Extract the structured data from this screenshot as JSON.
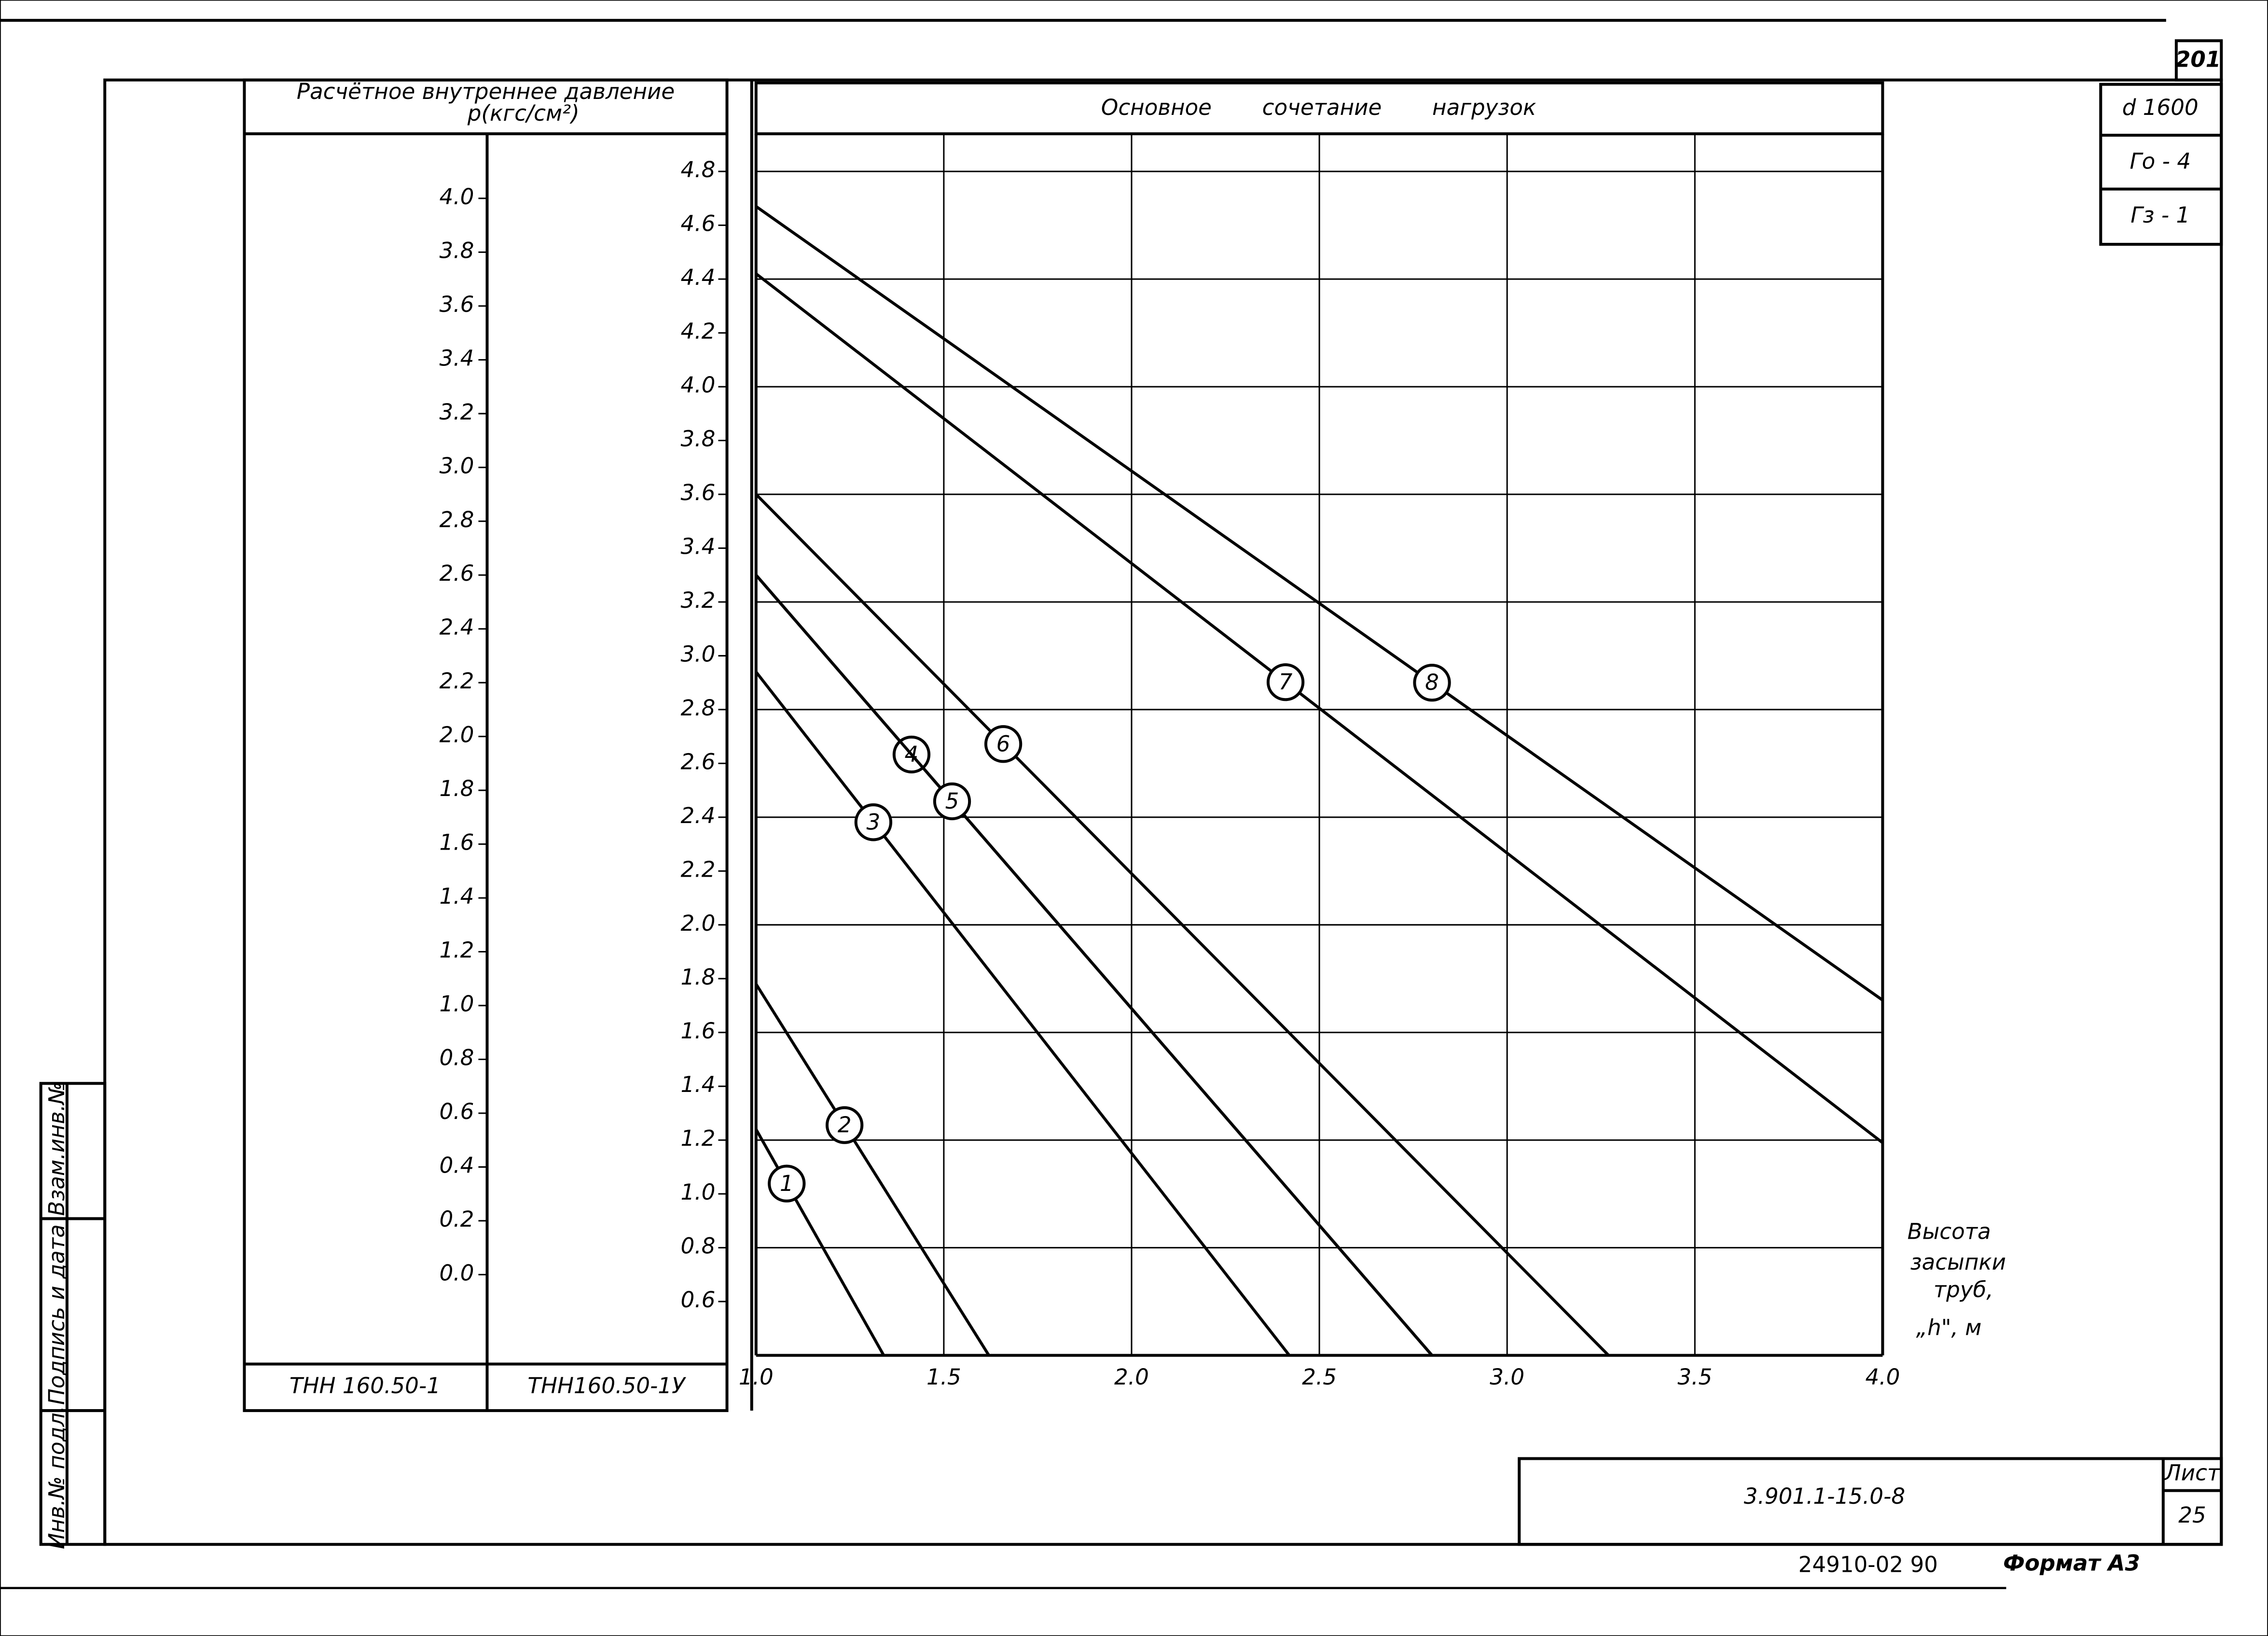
{
  "chart_data": {
    "type": "line",
    "title": "Основное сочетание нагрузок",
    "y_label": [
      "Расчётное внутреннее давление",
      "p(кгс/см²)"
    ],
    "x_label": [
      "Высота",
      "засыпки",
      "труб,",
      "„h\", м"
    ],
    "column_labels": [
      "ТНН 160.50-1",
      "ТНН160.50-1У"
    ],
    "xlim": [
      1.0,
      4.0
    ],
    "xticks": [
      {
        "value": 1,
        "label": "1.0"
      },
      1.5,
      {
        "value": 2,
        "label": "2.0"
      },
      2.5,
      {
        "value": 3,
        "label": "3.0"
      },
      3.5,
      {
        "value": 4,
        "label": "4.0"
      }
    ],
    "ylim": [
      0.4,
      4.94
    ],
    "yticks": [
      0.6,
      0.8,
      {
        "value": 1,
        "label": "1.0"
      },
      1.2,
      1.4,
      1.6,
      1.8,
      {
        "value": 2,
        "label": "2.0"
      },
      2.2,
      2.4,
      2.6,
      2.8,
      {
        "value": 3,
        "label": "3.0"
      },
      3.2,
      3.4,
      3.6,
      3.8,
      {
        "value": 4,
        "label": "4.0"
      },
      4.2,
      4.4,
      4.6,
      4.8
    ],
    "y2lim": [
      -0.3,
      4.24
    ],
    "y2ticks": [
      {
        "value": 0,
        "label": "0.0"
      },
      0.2,
      0.4,
      0.6,
      0.8,
      {
        "value": 1,
        "label": "1.0"
      },
      1.2,
      1.4,
      1.6,
      1.8,
      {
        "value": 2,
        "label": "2.0"
      },
      2.2,
      2.4,
      2.6,
      2.8,
      {
        "value": 3,
        "label": "3.0"
      },
      3.2,
      3.4,
      3.6,
      3.8,
      {
        "value": 4,
        "label": "4.0"
      }
    ],
    "grid": true,
    "series": [
      {
        "name": "1",
        "color": "#000000",
        "x": [
          1.0,
          1.34
        ],
        "values": [
          1.24,
          0.4
        ]
      },
      {
        "name": "2",
        "color": "#000000",
        "x": [
          1.0,
          1.62
        ],
        "values": [
          1.78,
          0.4
        ]
      },
      {
        "name": "3",
        "color": "#000000",
        "x": [
          1.0,
          2.42
        ],
        "values": [
          2.94,
          0.4
        ]
      },
      {
        "name": "4",
        "color": "#000000",
        "x": [
          1.0,
          2.8
        ],
        "values": [
          3.3,
          0.4
        ]
      },
      {
        "name": "5",
        "color": "#000000",
        "x": [
          1.0,
          2.8
        ],
        "values": [
          3.3,
          0.4
        ]
      },
      {
        "name": "6",
        "color": "#000000",
        "x": [
          1.0,
          3.27
        ],
        "values": [
          3.6,
          0.4
        ]
      },
      {
        "name": "7",
        "color": "#000000",
        "x": [
          1.0,
          4.0
        ],
        "values": [
          4.42,
          1.19
        ]
      },
      {
        "name": "8",
        "color": "#000000",
        "x": [
          1.0,
          4.0
        ],
        "values": [
          4.67,
          1.72
        ]
      }
    ]
  },
  "sheet": {
    "page_number": "201",
    "stamp": [
      "d 1600",
      "Го - 4",
      "Гз - 1"
    ],
    "side": [
      "Взам.инв.№",
      "Подпись и дата",
      "Инв.№ подл."
    ],
    "code": "3.901.1-15.0-8",
    "sheet_label": "Лист",
    "sheet_number": "25",
    "order": "24910-02  90",
    "format": "Формат А3"
  }
}
